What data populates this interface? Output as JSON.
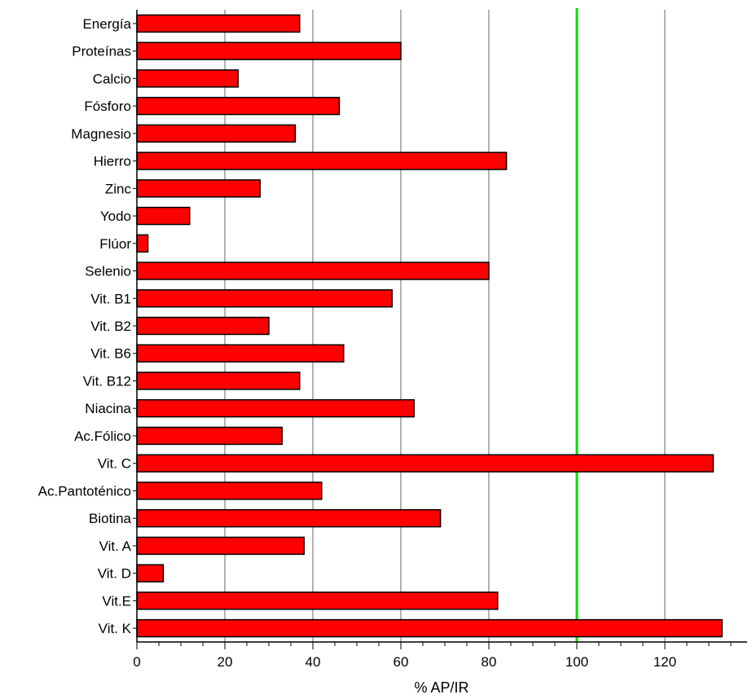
{
  "chart_data": {
    "type": "bar",
    "orientation": "horizontal",
    "categories": [
      "Energía",
      "Proteínas",
      "Calcio",
      "Fósforo",
      "Magnesio",
      "Hierro",
      "Zinc",
      "Yodo",
      "Flúor",
      "Selenio",
      "Vit. B1",
      "Vit. B2",
      "Vit. B6",
      "Vit. B12",
      "Niacina",
      "Ac.Fólico",
      "Vit. C",
      "Ac.Pantoténico",
      "Biotina",
      "Vit. A",
      "Vit. D",
      "Vit.E",
      "Vit. K"
    ],
    "values": [
      37,
      60,
      23,
      46,
      36,
      84,
      28,
      12,
      2.5,
      80,
      58,
      30,
      47,
      37,
      63,
      33,
      131,
      42,
      69,
      38,
      6,
      82,
      133
    ],
    "xlabel": "% AP/IR",
    "ylabel": "",
    "xlim": [
      0,
      139
    ],
    "xticks": [
      0,
      20,
      40,
      60,
      80,
      100,
      120
    ],
    "grid": "vertical",
    "reference_line": 100,
    "colors": {
      "bar_fill": "#ff0000",
      "bar_stroke": "#000000",
      "grid": "#808080",
      "reference_line": "#00e000"
    }
  }
}
